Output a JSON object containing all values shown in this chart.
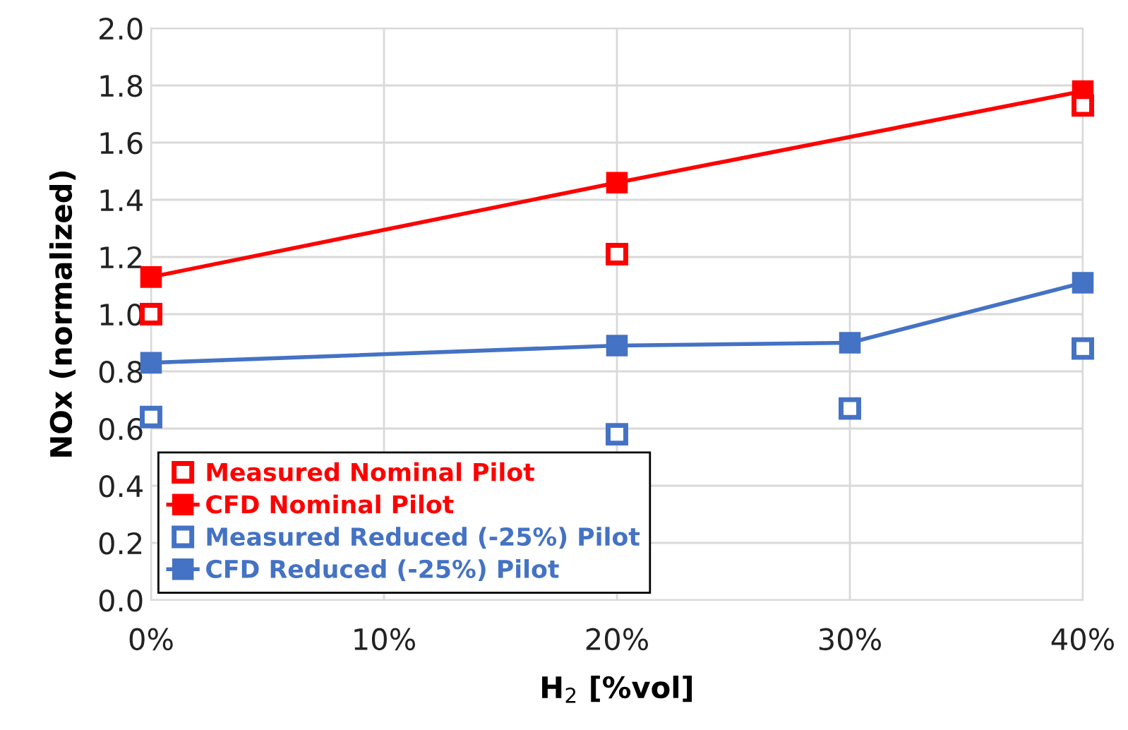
{
  "chart_data": {
    "type": "line",
    "xlabel": "H$_{2}$ [%vol]",
    "ylabel": "NOx (normalized)",
    "xlim": [
      0,
      40
    ],
    "xticks": [
      {
        "value": 0,
        "label": "0%"
      },
      {
        "value": 10,
        "label": "10%"
      },
      {
        "value": 20,
        "label": "20%"
      },
      {
        "value": 30,
        "label": "30%"
      },
      {
        "value": 40,
        "label": "40%"
      }
    ],
    "ylim": [
      0,
      2.0
    ],
    "yticks": [
      {
        "value": 0,
        "label": "0.0"
      },
      {
        "value": 0.2,
        "label": "0.2"
      },
      {
        "value": 0.4,
        "label": "0.4"
      },
      {
        "value": 0.6,
        "label": "0.6"
      },
      {
        "value": 0.8,
        "label": "0.8"
      },
      {
        "value": 1.0,
        "label": "1.0"
      },
      {
        "value": 1.2,
        "label": "1.2"
      },
      {
        "value": 1.4,
        "label": "1.4"
      },
      {
        "value": 1.6,
        "label": "1.6"
      },
      {
        "value": 1.8,
        "label": "1.8"
      },
      {
        "value": 2.0,
        "label": "2.0"
      }
    ],
    "grid": true,
    "legend": "bottom left",
    "marker": "square",
    "line_style": "solid",
    "series": [
      {
        "name": "Measured Nominal Pilot",
        "type": "scatter",
        "color": "#ff0000",
        "x": [
          0,
          20,
          40
        ],
        "values": [
          1.0,
          1.21,
          1.73
        ]
      },
      {
        "name": "CFD Nominal Pilot",
        "color": "#ff0000",
        "x": [
          0,
          20,
          40
        ],
        "values": [
          1.13,
          1.46,
          1.78
        ]
      },
      {
        "name": "Measured Reduced (-25%) Pilot",
        "type": "scatter",
        "color": "#4472c4",
        "x": [
          0,
          20,
          30,
          40
        ],
        "values": [
          0.64,
          0.58,
          0.67,
          0.88
        ]
      },
      {
        "name": "CFD Reduced (-25%) Pilot",
        "color": "#4472c4",
        "x": [
          0,
          20,
          30,
          40
        ],
        "values": [
          0.83,
          0.89,
          0.9,
          1.11
        ]
      }
    ]
  }
}
